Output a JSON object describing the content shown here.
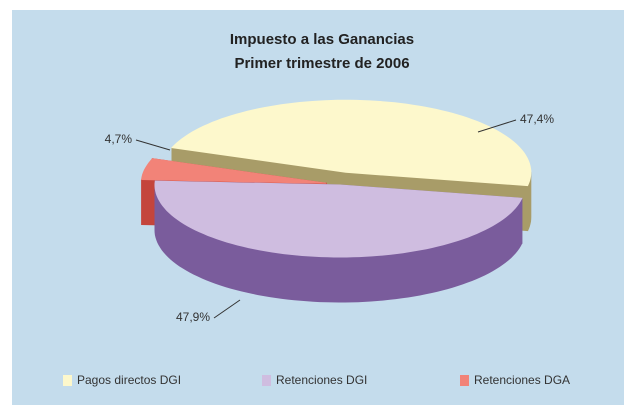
{
  "chart_data": {
    "type": "pie",
    "title": "Impuesto a las Ganancias",
    "subtitle": "Primer trimestre de 2006",
    "categories": [
      "Pagos directos DGI",
      "Retenciones DGI",
      "Retenciones DGA"
    ],
    "values": [
      47.4,
      47.9,
      4.7
    ],
    "value_labels": [
      "47,4%",
      "47,9%",
      "4,7%"
    ],
    "colors": [
      "#fdf8cc",
      "#cfbde0",
      "#f28378"
    ],
    "legend": "bottom",
    "three_d": true
  }
}
